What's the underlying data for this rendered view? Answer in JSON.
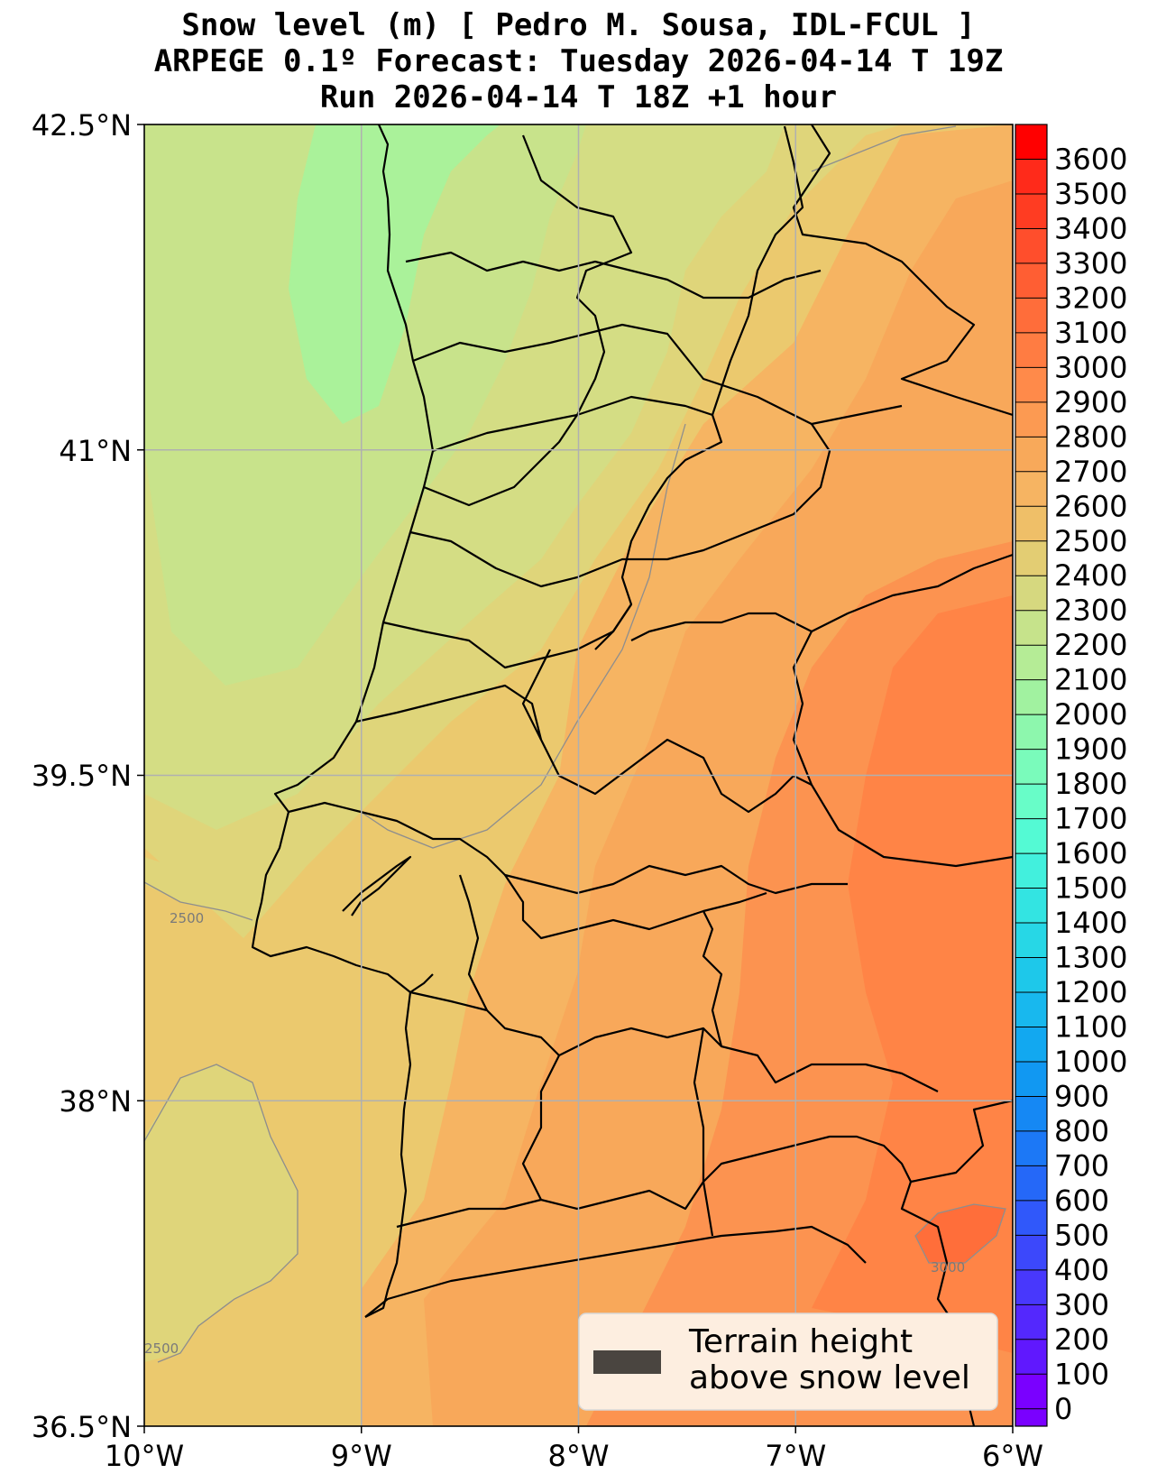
{
  "title": {
    "line1": "Snow level (m) [ Pedro M. Sousa, IDL-FCUL ]",
    "line2": "ARPEGE 0.1º Forecast: Tuesday 2026-04-14 T 19Z",
    "line3": "Run 2026-04-14 T 18Z +1 hour"
  },
  "axes": {
    "lon_ticks": [
      "10°W",
      "9°W",
      "8°W",
      "7°W",
      "6°W"
    ],
    "lat_ticks": [
      "42.5°N",
      "41°N",
      "39.5°N",
      "38°N",
      "36.5°N"
    ],
    "lon_range": [
      -10,
      -6
    ],
    "lat_range": [
      36.5,
      42.5
    ],
    "grid": true
  },
  "colorbar": {
    "labels": [
      "3600",
      "3500",
      "3400",
      "3300",
      "3200",
      "3100",
      "3000",
      "2900",
      "2800",
      "2700",
      "2600",
      "2500",
      "2400",
      "2300",
      "2200",
      "2100",
      "2000",
      "1900",
      "1800",
      "1700",
      "1600",
      "1500",
      "1400",
      "1300",
      "1200",
      "1100",
      "1000",
      "900",
      "800",
      "700",
      "600",
      "500",
      "400",
      "300",
      "200",
      "100",
      "0"
    ],
    "colors": [
      "#ff0000",
      "#ff2a1a",
      "#ff3c22",
      "#ff4e2c",
      "#ff5e33",
      "#ff6d3a",
      "#ff7c42",
      "#ff8a4a",
      "#fc9a52",
      "#f8a95a",
      "#f6b462",
      "#efbf68",
      "#e3cd73",
      "#d6d87f",
      "#c6e38b",
      "#b5ec96",
      "#a1f2a0",
      "#8df7ad",
      "#7afbbb",
      "#68fdc8",
      "#54fad4",
      "#42f0dd",
      "#33e4e2",
      "#27d7e6",
      "#1ec8ea",
      "#18b8ee",
      "#12a8f0",
      "#1198f2",
      "#1588f4",
      "#1c78f6",
      "#2568f8",
      "#3058fa",
      "#3c48fb",
      "#4838fc",
      "#5428fd",
      "#6018fe",
      "#7a00ff"
    ]
  },
  "contour_labels": [
    "2500",
    "2500",
    "3000"
  ],
  "legend": {
    "line1": "Terrain height",
    "line2": "above snow level",
    "swatch_color": "#4a4540"
  },
  "field_colors": {
    "green": "#aaf29a",
    "pale_green": "#c8e38b",
    "yellow_green": "#d4dd84",
    "khaki": "#dfd57a",
    "tan": "#ebc96e",
    "light_orange": "#f6b462",
    "orange": "#f8a85a",
    "dark_orange": "#fc9350",
    "deep_orange": "#ff8446",
    "red_orange": "#ff6e3a"
  }
}
